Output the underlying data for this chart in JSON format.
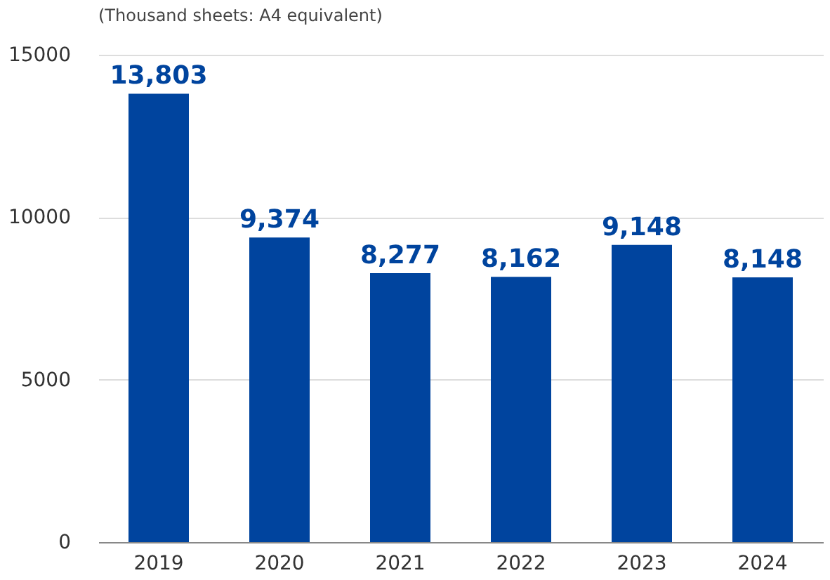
{
  "chart_data": {
    "type": "bar",
    "title": "(Thousand sheets: A4 equivalent)",
    "categories": [
      "2019",
      "2020",
      "2021",
      "2022",
      "2023",
      "2024"
    ],
    "values": [
      13803,
      9374,
      8277,
      8162,
      9148,
      8148
    ],
    "color": "#00449e",
    "value_labels": [
      "13,803",
      "9,374",
      "8,277",
      "8,162",
      "9,148",
      "8,148"
    ],
    "ylim": [
      0,
      15000
    ],
    "yticks": [
      0,
      5000,
      10000,
      15000
    ],
    "grid": "y"
  }
}
